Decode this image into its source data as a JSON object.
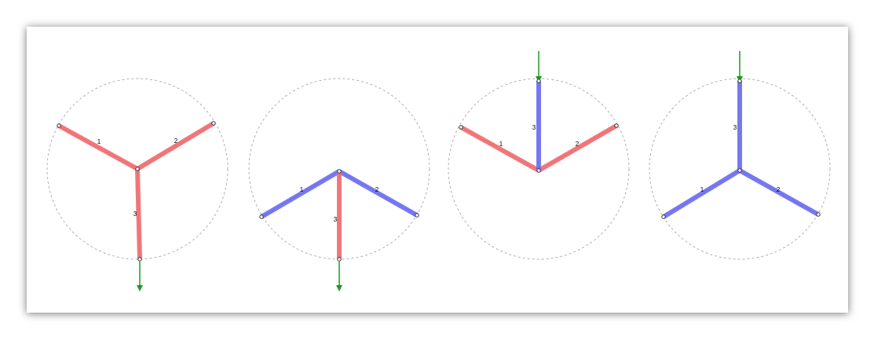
{
  "colors": {
    "tension": "#ef6a6e",
    "compression": "#6a6cf0",
    "force_arrow": "#1e9a1e",
    "circle": "#b0b0b0"
  },
  "diagrams": [
    {
      "bars": [
        {
          "label": "1",
          "state": "tension"
        },
        {
          "label": "2",
          "state": "tension"
        },
        {
          "label": "3",
          "state": "tension"
        }
      ],
      "load": "down-out"
    },
    {
      "bars": [
        {
          "label": "1",
          "state": "compression"
        },
        {
          "label": "2",
          "state": "compression"
        },
        {
          "label": "3",
          "state": "tension"
        }
      ],
      "load": "down-out"
    },
    {
      "bars": [
        {
          "label": "1",
          "state": "tension"
        },
        {
          "label": "2",
          "state": "tension"
        },
        {
          "label": "3",
          "state": "compression"
        }
      ],
      "load": "down-in"
    },
    {
      "bars": [
        {
          "label": "1",
          "state": "compression"
        },
        {
          "label": "2",
          "state": "compression"
        },
        {
          "label": "3",
          "state": "compression"
        }
      ],
      "load": "down-in"
    }
  ]
}
